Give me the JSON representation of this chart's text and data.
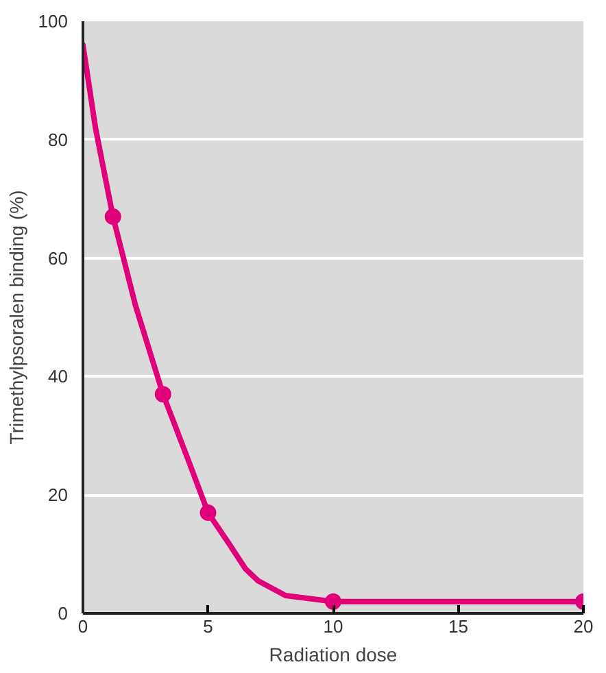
{
  "chart_data": {
    "type": "line",
    "xlabel": "Radiation dose",
    "ylabel": "Trimethylpsoralen binding (%)",
    "xlim": [
      0,
      20
    ],
    "ylim": [
      0,
      100
    ],
    "xticks": [
      0,
      5,
      10,
      15,
      20
    ],
    "yticks": [
      0,
      20,
      40,
      60,
      80,
      100
    ],
    "grid": "y",
    "series": [
      {
        "marker": "none",
        "color": "#e0007a",
        "x": [
          0,
          0.5,
          1.2,
          2.1,
          3.2,
          4.2,
          5,
          5.8,
          6.5,
          7,
          8.1,
          10,
          20
        ],
        "values": [
          96,
          82,
          67,
          52,
          37,
          26,
          17,
          12,
          7.5,
          5.5,
          3,
          2,
          2
        ]
      },
      {
        "type": "scatter",
        "marker": "circle",
        "color": "#e0007a",
        "x": [
          1.2,
          3.2,
          5,
          10,
          20
        ],
        "values": [
          67,
          37,
          17,
          2,
          2
        ]
      }
    ]
  }
}
